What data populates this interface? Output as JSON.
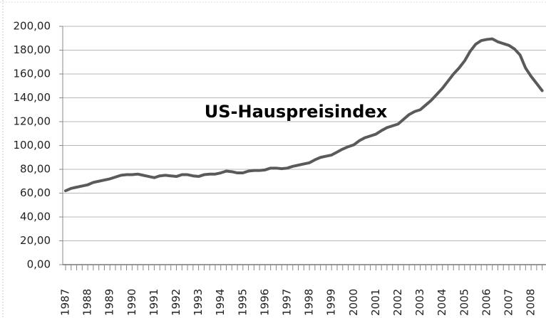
{
  "chart_data": {
    "type": "line",
    "title": "US-Hauspreisindex",
    "categories": [
      "1987",
      null,
      null,
      null,
      "1988",
      null,
      null,
      null,
      "1989",
      null,
      null,
      null,
      "1990",
      null,
      null,
      null,
      "1991",
      null,
      null,
      null,
      "1992",
      null,
      null,
      null,
      "1993",
      null,
      null,
      null,
      "1994",
      null,
      null,
      null,
      "1995",
      null,
      null,
      null,
      "1996",
      null,
      null,
      null,
      "1997",
      null,
      null,
      null,
      "1998",
      null,
      null,
      null,
      "1999",
      null,
      null,
      null,
      "2000",
      null,
      null,
      null,
      "2001",
      null,
      null,
      null,
      "2002",
      null,
      null,
      null,
      "2003",
      null,
      null,
      null,
      "2004",
      null,
      null,
      null,
      "2005",
      null,
      null,
      null,
      "2006",
      null,
      null,
      null,
      "2007",
      null,
      null,
      null,
      "2008",
      null,
      null
    ],
    "series": [
      {
        "color": "#5a5a5a",
        "values": [
          62,
          64,
          65,
          66,
          67,
          69,
          70,
          71,
          72,
          73.5,
          75,
          75.5,
          75.5,
          76,
          75,
          74,
          73,
          74.5,
          75,
          74.5,
          74,
          75.5,
          75.5,
          74.5,
          74,
          75.5,
          76,
          76,
          77,
          78.5,
          78,
          77,
          77,
          78.5,
          79,
          79,
          79.5,
          81,
          81,
          80.5,
          81,
          82.5,
          83.5,
          84.5,
          85.5,
          88,
          90,
          91,
          92,
          94.5,
          97,
          99,
          100.5,
          104,
          106.5,
          108,
          109.5,
          112.5,
          115,
          116.5,
          118,
          122,
          126,
          128.5,
          130,
          134,
          138,
          143,
          148,
          154,
          160,
          165,
          171,
          179,
          185,
          188,
          189,
          189.5,
          187,
          185.5,
          184,
          181,
          176,
          165,
          158,
          152,
          146
        ]
      }
    ],
    "ylim": [
      0,
      200
    ],
    "yticks": [
      {
        "value": 0,
        "label": "0,00"
      },
      {
        "value": 20,
        "label": "20,00"
      },
      {
        "value": 40,
        "label": "40,00"
      },
      {
        "value": 60,
        "label": "60,00"
      },
      {
        "value": 80,
        "label": "80,00"
      },
      {
        "value": 100,
        "label": "100,00"
      },
      {
        "value": 120,
        "label": "120,00"
      },
      {
        "value": 140,
        "label": "140,00"
      },
      {
        "value": 160,
        "label": "160,00"
      },
      {
        "value": 180,
        "label": "180,00"
      },
      {
        "value": 200,
        "label": "200,00"
      }
    ],
    "grid": true
  }
}
